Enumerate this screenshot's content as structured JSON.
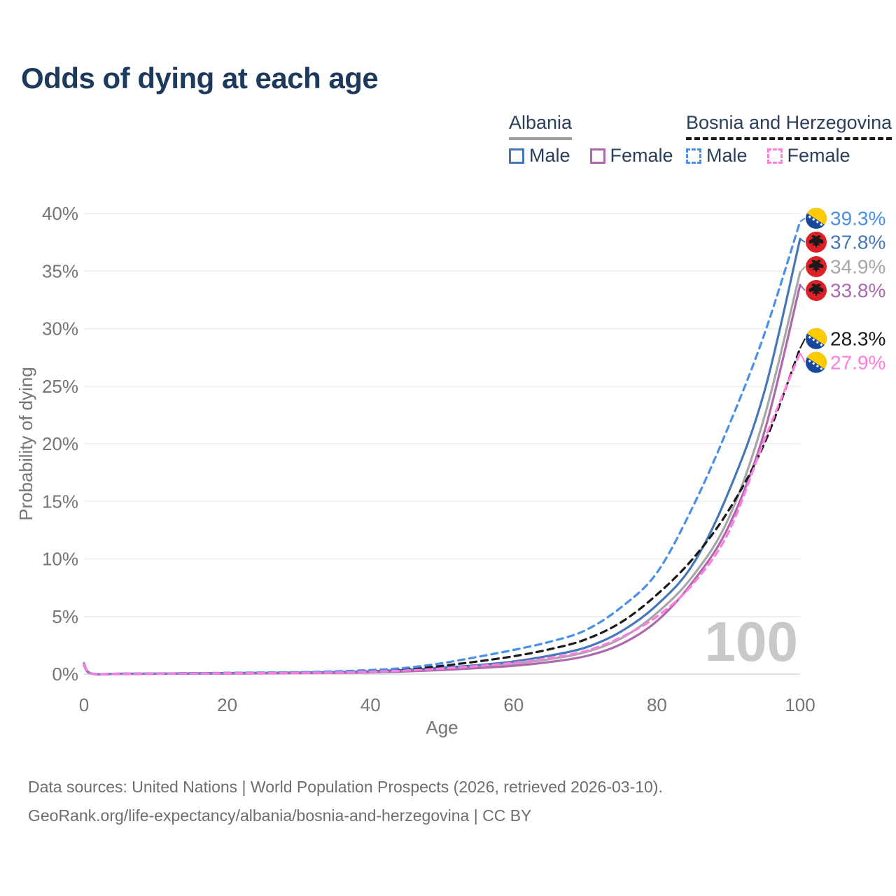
{
  "title": "Odds of dying at each age",
  "watermark_age": "100",
  "legend": {
    "groups": [
      {
        "name": "Albania",
        "line_color": "#9e9e9e",
        "line_style": "solid",
        "items": [
          {
            "label": "Male",
            "color": "#4677b8",
            "line_style": "solid",
            "series": "albania_male"
          },
          {
            "label": "Female",
            "color": "#ad68ae",
            "line_style": "solid",
            "series": "albania_female"
          }
        ]
      },
      {
        "name": "Bosnia and Herzegovina",
        "line_color": "#1a1a1a",
        "line_style": "dashed",
        "items": [
          {
            "label": "Male",
            "color": "#4a90e8",
            "line_style": "dashed",
            "series": "bosnia_male"
          },
          {
            "label": "Female",
            "color": "#ff7de1",
            "line_style": "dashed",
            "series": "bosnia_female"
          }
        ]
      }
    ]
  },
  "axes": {
    "x": {
      "label": "Age",
      "ticks": [
        "0",
        "20",
        "40",
        "60",
        "80",
        "100"
      ],
      "tick_values": [
        0,
        20,
        40,
        60,
        80,
        100
      ]
    },
    "y": {
      "label": "Probability of dying",
      "ticks": [
        "0%",
        "5%",
        "10%",
        "15%",
        "20%",
        "25%",
        "30%",
        "35%",
        "40%"
      ],
      "tick_values": [
        0,
        5,
        10,
        15,
        20,
        25,
        30,
        35,
        40
      ]
    }
  },
  "footer": {
    "line1": "Data sources: United Nations | World Population Prospects (2026, retrieved 2026-03-10).",
    "line2": "GeoRank.org/life-expectancy/albania/bosnia-and-herzegovina | CC BY"
  },
  "palette": {
    "title_text": "#1d3a5c",
    "legend_text": "#2c405e",
    "axis_text": "#757575",
    "gridline": "#ededed",
    "baseline": "#e0e0e0",
    "watermark": "#c9c9c9",
    "footer_text": "#6e6e6e",
    "flag_albania_red": "#dd1f26",
    "flag_albania_eagle": "#1a1a1a",
    "flag_bosnia_blue": "#17489c",
    "flag_bosnia_yellow": "#fecb00",
    "flag_bosnia_star": "#ffffff"
  },
  "chart_data": {
    "type": "line",
    "title": "Odds of dying at each age",
    "xlabel": "Age",
    "ylabel": "Probability of dying",
    "xlim": [
      0,
      100
    ],
    "ylim_pct": [
      0,
      40
    ],
    "grid": "horizontal",
    "hover_age": 100,
    "ages": [
      0,
      1,
      5,
      10,
      15,
      20,
      25,
      30,
      35,
      40,
      45,
      50,
      55,
      60,
      65,
      70,
      75,
      80,
      85,
      90,
      95,
      100
    ],
    "series": [
      {
        "id": "albania_total",
        "name": "Albania — Both sexes",
        "color": "#a6a6a6",
        "dash": "solid",
        "values_pct": [
          0.82,
          0.05,
          0.03,
          0.03,
          0.05,
          0.07,
          0.09,
          0.11,
          0.14,
          0.2,
          0.3,
          0.46,
          0.65,
          0.9,
          1.3,
          1.9,
          3.1,
          5.3,
          8.5,
          13.5,
          22.3,
          34.9
        ]
      },
      {
        "id": "albania_male",
        "name": "Albania — Male",
        "color": "#4677b8",
        "dash": "solid",
        "values_pct": [
          0.9,
          0.05,
          0.03,
          0.04,
          0.06,
          0.09,
          0.11,
          0.13,
          0.17,
          0.24,
          0.37,
          0.55,
          0.78,
          1.1,
          1.6,
          2.3,
          3.7,
          6.0,
          9.5,
          15.8,
          24.5,
          37.8
        ]
      },
      {
        "id": "albania_female",
        "name": "Albania — Female",
        "color": "#ad68ae",
        "dash": "solid",
        "values_pct": [
          0.75,
          0.04,
          0.02,
          0.03,
          0.04,
          0.05,
          0.07,
          0.09,
          0.11,
          0.15,
          0.23,
          0.36,
          0.52,
          0.72,
          1.05,
          1.55,
          2.6,
          4.6,
          8.0,
          12.8,
          21.0,
          33.8
        ]
      },
      {
        "id": "bosnia_total",
        "name": "Bosnia and Herzegovina — Both sexes",
        "color": "#1a1a1a",
        "dash": "dashed",
        "values_pct": [
          0.88,
          0.06,
          0.03,
          0.04,
          0.07,
          0.09,
          0.11,
          0.14,
          0.19,
          0.28,
          0.44,
          0.72,
          1.1,
          1.55,
          2.15,
          3.0,
          4.5,
          6.9,
          10.0,
          14.2,
          20.0,
          28.3
        ]
      },
      {
        "id": "bosnia_male",
        "name": "Bosnia and Herzegovina — Male",
        "color": "#4a90e8",
        "dash": "dashed",
        "values_pct": [
          0.95,
          0.07,
          0.04,
          0.05,
          0.08,
          0.11,
          0.14,
          0.17,
          0.24,
          0.35,
          0.55,
          0.95,
          1.5,
          2.1,
          2.8,
          3.8,
          5.8,
          8.8,
          14.5,
          21.5,
          29.5,
          39.3
        ]
      },
      {
        "id": "bosnia_female",
        "name": "Bosnia and Herzegovina — Female",
        "color": "#ff7de1",
        "dash": "dashed",
        "values_pct": [
          0.85,
          0.05,
          0.03,
          0.03,
          0.05,
          0.07,
          0.09,
          0.11,
          0.14,
          0.2,
          0.31,
          0.48,
          0.7,
          0.98,
          1.4,
          2.0,
          3.2,
          5.0,
          7.8,
          12.3,
          20.3,
          27.9
        ]
      }
    ],
    "end_labels": [
      {
        "text": "39.3%",
        "value_pct": 39.3,
        "series": "bosnia_male",
        "flag": "bosnia-and-herzegovina",
        "color": "#4a90e8"
      },
      {
        "text": "37.8%",
        "value_pct": 37.8,
        "series": "albania_male",
        "flag": "albania",
        "color": "#4677b8"
      },
      {
        "text": "34.9%",
        "value_pct": 34.9,
        "series": "albania_total",
        "flag": "albania",
        "color": "#a6a6a6"
      },
      {
        "text": "33.8%",
        "value_pct": 33.8,
        "series": "albania_female",
        "flag": "albania",
        "color": "#ad68ae"
      },
      {
        "text": "28.3%",
        "value_pct": 28.3,
        "series": "bosnia_total",
        "flag": "bosnia-and-herzegovina",
        "color": "#1a1a1a"
      },
      {
        "text": "27.9%",
        "value_pct": 27.9,
        "series": "bosnia_female",
        "flag": "bosnia-and-herzegovina",
        "color": "#ff7de1"
      }
    ]
  }
}
